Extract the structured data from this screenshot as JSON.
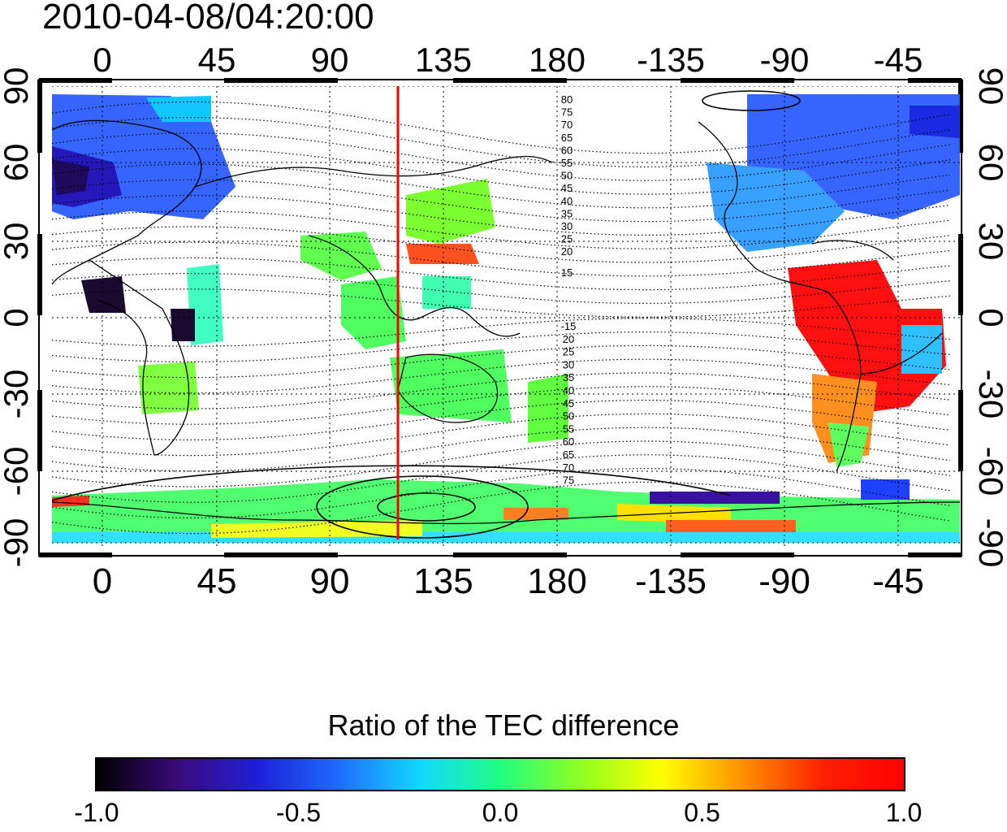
{
  "timestamp": "2010-04-08/04:20:00",
  "colorbar": {
    "title": "Ratio of the TEC difference",
    "tick_labels": [
      "-1.0",
      "-0.5",
      "0.0",
      "0.5",
      "1.0"
    ],
    "range": [
      -1.0,
      1.0
    ],
    "colormap": [
      "#000000",
      "#3a0a7a",
      "#1f1fd8",
      "#1e6cff",
      "#10d8ff",
      "#20ff80",
      "#90ff20",
      "#ffff00",
      "#ff9000",
      "#ff2000",
      "#ff0000"
    ]
  },
  "map": {
    "top_lon_ticks": [
      "0",
      "45",
      "90",
      "135",
      "180",
      "-135",
      "-90",
      "-45"
    ],
    "bottom_lon_ticks": [
      "0",
      "45",
      "90",
      "135",
      "180",
      "-135",
      "-90",
      "-45"
    ],
    "left_lat_ticks": [
      "90",
      "60",
      "30",
      "0",
      "-30",
      "-60",
      "-90"
    ],
    "right_lat_ticks": [
      "90",
      "60",
      "30",
      "0",
      "-30",
      "-60",
      "-90"
    ],
    "north_contour_labels": [
      "80",
      "75",
      "70",
      "65",
      "60",
      "55",
      "50",
      "45",
      "40",
      "35",
      "30",
      "25",
      "20",
      "15"
    ],
    "south_contour_labels": [
      "-15",
      "20",
      "25",
      "30",
      "35",
      "40",
      "45",
      "50",
      "55",
      "60",
      "65",
      "70",
      "75"
    ],
    "marker_longitude": 115,
    "marker_color": "#ff0000"
  }
}
